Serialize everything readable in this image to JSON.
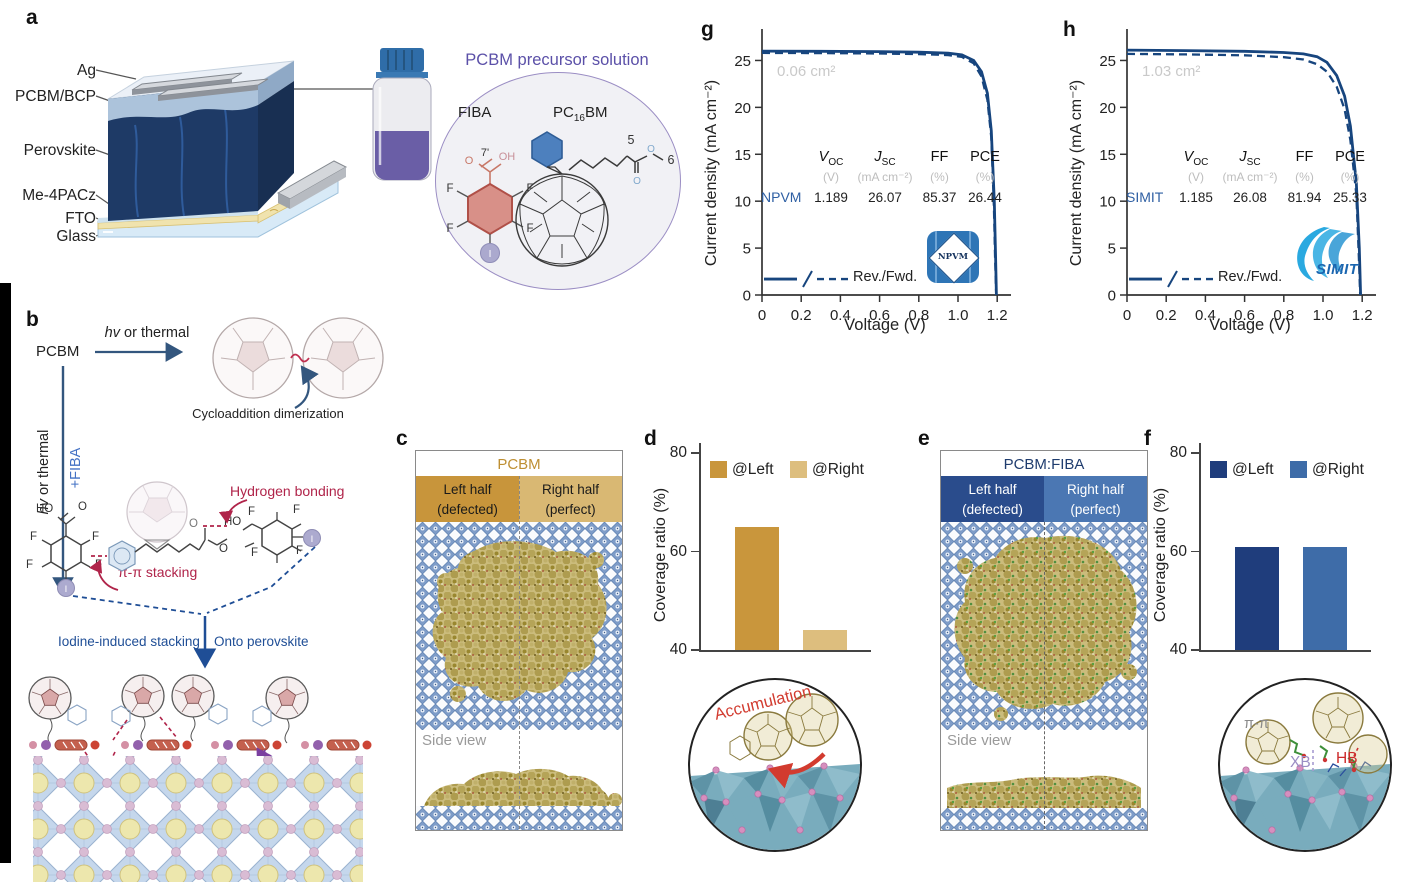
{
  "panel_letters": {
    "a": "a",
    "b": "b",
    "c": "c",
    "d": "d",
    "e": "e",
    "f": "f",
    "g": "g",
    "h": "h"
  },
  "panels": {
    "a": {
      "layers": [
        "Ag",
        "PCBM/BCP",
        "Perovskite",
        "Me-4PACz",
        "FTO",
        "Glass"
      ],
      "solution_title": "PCBM precursor solution",
      "fiba_label": "FIBA",
      "pcbm_label": {
        "p1": "PC",
        "sub": "16",
        "p2": "BM"
      },
      "atoms": {
        "o": "O",
        "oh": "OH",
        "f": "F",
        "i": "I",
        "pos7": "7'",
        "pos5": "5",
        "pos6": "6"
      }
    },
    "b": {
      "pcbm": "PCBM",
      "hv_italic": "hv",
      "hv_rest": " or thermal",
      "plus_fiba": "+FIBA",
      "cycloaddition": "Cycloaddition dimerization",
      "hydrogen_bonding": "Hydrogen bonding",
      "pi_stacking": "π-π stacking",
      "iodine_stacking": "Iodine-induced stacking",
      "onto_perovskite": "Onto perovskite",
      "atoms": {
        "ho": "HO",
        "o": "O",
        "f": "F",
        "i": "I"
      }
    },
    "c": {
      "title": "PCBM",
      "left_line1": "Left half",
      "left_line2": "(defected)",
      "right_line1": "Right half",
      "right_line2": "(perfect)",
      "side_view": "Side view"
    },
    "e": {
      "title": "PCBM:FIBA",
      "left_line1": "Left half",
      "left_line2": "(defected)",
      "right_line1": "Right half",
      "right_line2": "(perfect)",
      "side_view": "Side view"
    },
    "insets": {
      "accumulation": "Accumulation",
      "pi_pi": "π-π",
      "xb": "XB",
      "hb": "HB"
    }
  },
  "chart_data": [
    {
      "id": "d",
      "type": "bar",
      "categories": [
        "@Left",
        "@Right"
      ],
      "values": [
        65,
        44
      ],
      "colors": [
        "#C9963C",
        "#DDBE7E"
      ],
      "ylabel": "Coverage ratio (%)",
      "ylim": [
        40,
        80
      ],
      "yticks": [
        40,
        60,
        80
      ],
      "legend_position": "top-inside"
    },
    {
      "id": "f",
      "type": "bar",
      "categories": [
        "@Left",
        "@Right"
      ],
      "values": [
        61,
        61
      ],
      "colors": [
        "#1F3D7C",
        "#3E6CA8"
      ],
      "ylabel": "Coverage ratio (%)",
      "ylim": [
        40,
        80
      ],
      "yticks": [
        40,
        60,
        80
      ],
      "legend_position": "top-inside"
    },
    {
      "id": "g",
      "type": "line",
      "area_label": "0.06 cm²",
      "logo": "NPVM",
      "xlabel": "Voltage (V)",
      "ylabel": "Current density (mA cm⁻²)",
      "legend": "Rev./Fwd.",
      "line_color": "#17457E",
      "xlim": [
        0,
        1.25
      ],
      "ylim": [
        0,
        27.5
      ],
      "xticks": [
        "0",
        "0.2",
        "0.4",
        "0.6",
        "0.8",
        "1.0",
        "1.2"
      ],
      "yticks": [
        0,
        5,
        10,
        15,
        20,
        25
      ],
      "table": {
        "h_voc": {
          "s": "V",
          "b": "OC"
        },
        "h_jsc": {
          "s": "J",
          "b": "SC"
        },
        "h_ff": "FF",
        "h_pce": "PCE",
        "units": [
          "(V)",
          "(mA cm⁻²)",
          "(%)",
          "(%)"
        ],
        "row_label": "NPVM",
        "row_values": [
          "1.189",
          "26.07",
          "85.37",
          "26.44"
        ]
      },
      "series": [
        {
          "name": "Rev",
          "dash": false,
          "points": [
            [
              0,
              26.0
            ],
            [
              0.3,
              25.98
            ],
            [
              0.6,
              25.94
            ],
            [
              0.8,
              25.88
            ],
            [
              0.95,
              25.78
            ],
            [
              1.02,
              25.6
            ],
            [
              1.08,
              25.0
            ],
            [
              1.12,
              23.8
            ],
            [
              1.15,
              21.5
            ],
            [
              1.17,
              17.5
            ],
            [
              1.185,
              10.0
            ],
            [
              1.192,
              4.0
            ],
            [
              1.196,
              0
            ]
          ]
        },
        {
          "name": "Fwd",
          "dash": true,
          "points": [
            [
              0,
              25.8
            ],
            [
              0.3,
              25.78
            ],
            [
              0.6,
              25.74
            ],
            [
              0.8,
              25.68
            ],
            [
              0.95,
              25.57
            ],
            [
              1.02,
              25.38
            ],
            [
              1.08,
              24.7
            ],
            [
              1.12,
              23.3
            ],
            [
              1.15,
              20.8
            ],
            [
              1.17,
              16.8
            ],
            [
              1.183,
              9.5
            ],
            [
              1.19,
              3.5
            ],
            [
              1.195,
              0
            ]
          ]
        }
      ]
    },
    {
      "id": "h",
      "type": "line",
      "area_label": "1.03 cm²",
      "logo": "SIMIT",
      "xlabel": "Voltage (V)",
      "ylabel": "Current density (mA cm⁻²)",
      "legend": "Rev./Fwd.",
      "line_color": "#17457E",
      "xlim": [
        0,
        1.25
      ],
      "ylim": [
        0,
        27.5
      ],
      "xticks": [
        "0",
        "0.2",
        "0.4",
        "0.6",
        "0.8",
        "1.0",
        "1.2"
      ],
      "yticks": [
        0,
        5,
        10,
        15,
        20,
        25
      ],
      "table": {
        "h_voc": {
          "s": "V",
          "b": "OC"
        },
        "h_jsc": {
          "s": "J",
          "b": "SC"
        },
        "h_ff": "FF",
        "h_pce": "PCE",
        "units": [
          "(V)",
          "(mA cm⁻²)",
          "(%)",
          "(%)"
        ],
        "row_label": "SIMIT",
        "row_values": [
          "1.185",
          "26.08",
          "81.94",
          "25.33"
        ]
      },
      "series": [
        {
          "name": "Rev",
          "dash": false,
          "points": [
            [
              0,
              26.1
            ],
            [
              0.3,
              26.05
            ],
            [
              0.6,
              25.98
            ],
            [
              0.8,
              25.85
            ],
            [
              0.9,
              25.7
            ],
            [
              0.97,
              25.4
            ],
            [
              1.02,
              24.8
            ],
            [
              1.07,
              23.4
            ],
            [
              1.11,
              21.2
            ],
            [
              1.14,
              18.0
            ],
            [
              1.17,
              12.0
            ],
            [
              1.185,
              5.0
            ],
            [
              1.192,
              0
            ]
          ]
        },
        {
          "name": "Fwd",
          "dash": true,
          "points": [
            [
              0,
              25.7
            ],
            [
              0.3,
              25.65
            ],
            [
              0.6,
              25.55
            ],
            [
              0.8,
              25.35
            ],
            [
              0.9,
              25.1
            ],
            [
              0.97,
              24.6
            ],
            [
              1.02,
              23.8
            ],
            [
              1.07,
              22.2
            ],
            [
              1.11,
              19.8
            ],
            [
              1.14,
              16.5
            ],
            [
              1.17,
              10.8
            ],
            [
              1.182,
              4.5
            ],
            [
              1.19,
              0
            ]
          ]
        }
      ]
    }
  ]
}
